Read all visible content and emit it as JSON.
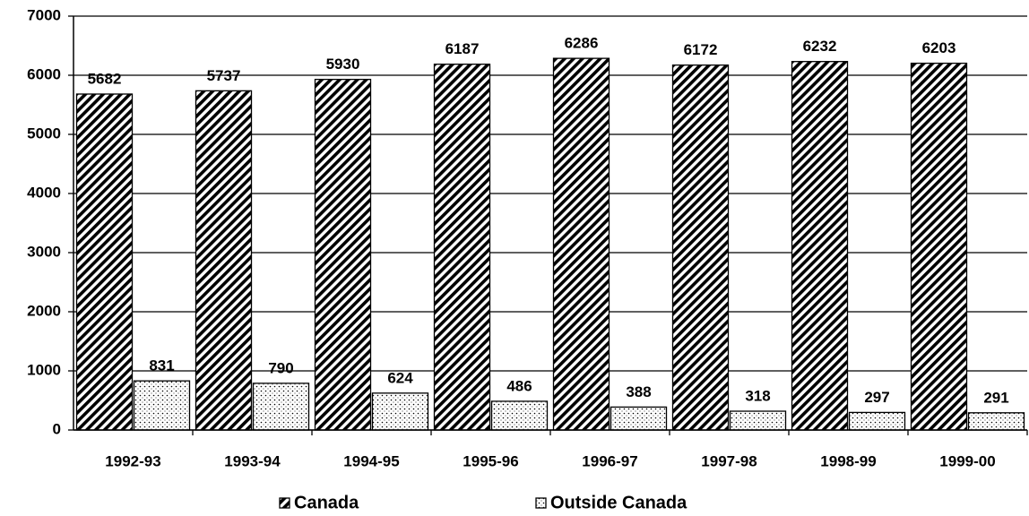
{
  "chart_data": {
    "type": "bar",
    "categories": [
      "1992-93",
      "1993-94",
      "1994-95",
      "1995-96",
      "1996-97",
      "1997-98",
      "1998-99",
      "1999-00"
    ],
    "series": [
      {
        "name": "Canada",
        "color": "#000000",
        "values": [
          5682,
          5737,
          5930,
          6187,
          6286,
          6172,
          6232,
          6203
        ]
      },
      {
        "name": "Outside Canada",
        "color": "#000000",
        "values": [
          831,
          790,
          624,
          486,
          388,
          318,
          297,
          291
        ]
      }
    ],
    "ylim": [
      0,
      7000
    ],
    "yticks": [
      0,
      1000,
      2000,
      3000,
      4000,
      5000,
      6000,
      7000
    ],
    "grid": true,
    "legend": "bottom"
  }
}
